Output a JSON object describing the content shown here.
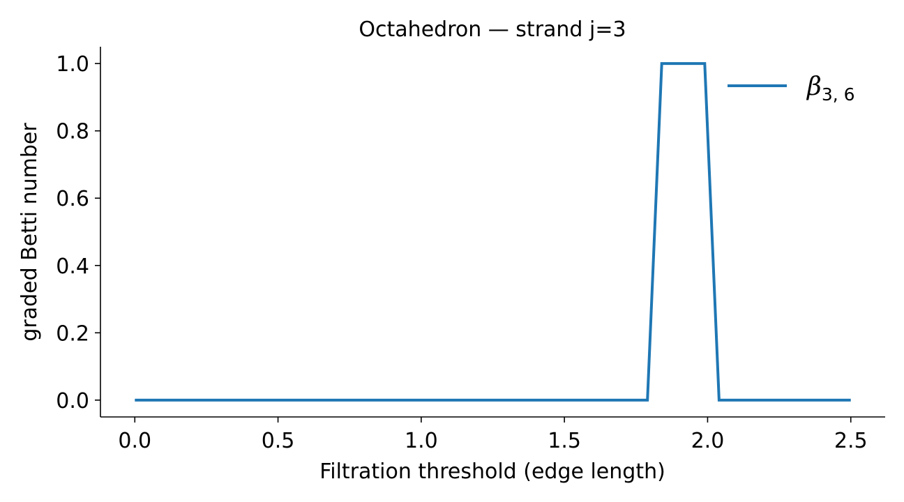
{
  "chart_data": {
    "type": "line",
    "title": "Octahedron — strand j=3",
    "xlabel": "Filtration threshold (edge length)",
    "ylabel": "graded Betti number",
    "xlim": [
      -0.12,
      2.62
    ],
    "ylim": [
      -0.05,
      1.05
    ],
    "xticks": [
      0.0,
      0.5,
      1.0,
      1.5,
      2.0,
      2.5
    ],
    "xtick_labels": [
      "0.0",
      "0.5",
      "1.0",
      "1.5",
      "2.0",
      "2.5"
    ],
    "yticks": [
      0.0,
      0.2,
      0.4,
      0.6,
      0.8,
      1.0
    ],
    "ytick_labels": [
      "0.0",
      "0.2",
      "0.4",
      "0.6",
      "0.8",
      "1.0"
    ],
    "grid": false,
    "legend_position": "top-right",
    "series": [
      {
        "name": "β3,6",
        "legend_symbol": "β",
        "legend_subscript": "3, 6",
        "color": "#1f77b4",
        "x": [
          0.0,
          1.79,
          1.84,
          1.99,
          2.04,
          2.5
        ],
        "y": [
          0,
          0,
          1,
          1,
          0,
          0
        ]
      }
    ]
  }
}
